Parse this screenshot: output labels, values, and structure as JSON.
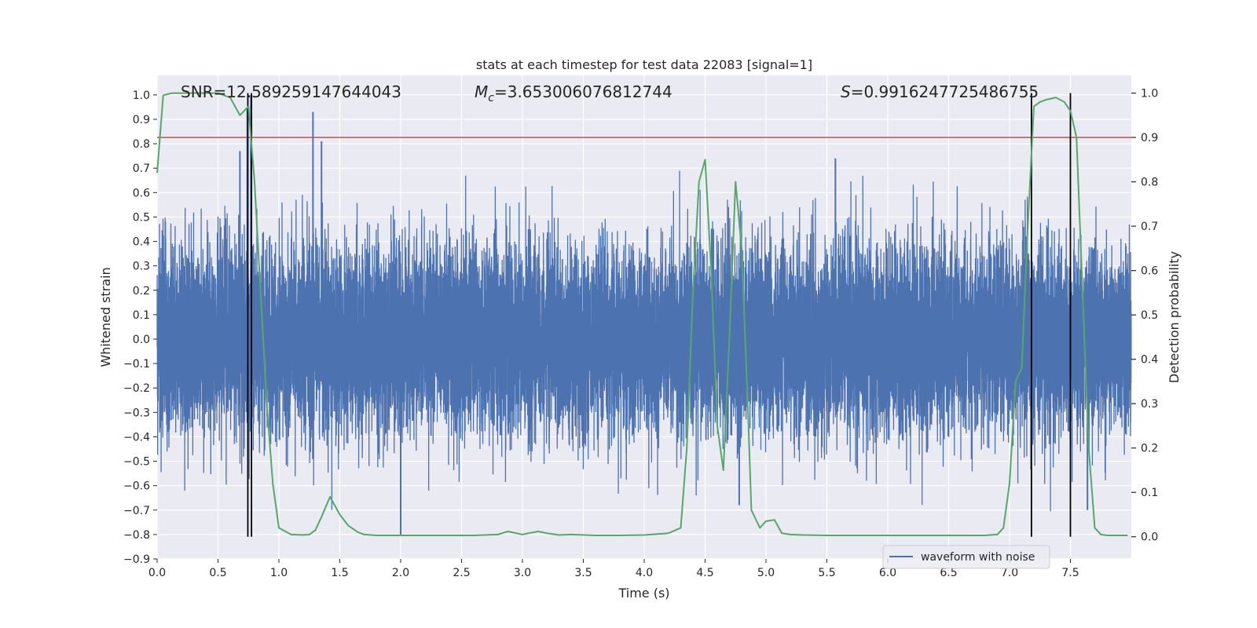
{
  "chart_data": {
    "type": "line",
    "title": "stats at each timestep for test data 22083 [signal=1]",
    "xlabel": "Time (s)",
    "ylabel_left": "Whitened strain",
    "ylabel_right": "Detection probability",
    "xlim": [
      0.0,
      8.0
    ],
    "ylim_left": [
      -0.9,
      1.08
    ],
    "ylim_right": [
      -0.05,
      1.04
    ],
    "x_ticks": [
      0.0,
      0.5,
      1.0,
      1.5,
      2.0,
      2.5,
      3.0,
      3.5,
      4.0,
      4.5,
      5.0,
      5.5,
      6.0,
      6.5,
      7.0,
      7.5
    ],
    "x_tick_labels": [
      "0.0",
      "0.5",
      "1.0",
      "1.5",
      "2.0",
      "2.5",
      "3.0",
      "3.5",
      "4.0",
      "4.5",
      "5.0",
      "5.5",
      "6.0",
      "6.5",
      "7.0",
      "7.5"
    ],
    "y_left_ticks": [
      1.0,
      0.9,
      0.8,
      0.7,
      0.6,
      0.5,
      0.4,
      0.3,
      0.2,
      0.1,
      0.0,
      -0.1,
      -0.2,
      -0.3,
      -0.4,
      -0.5,
      -0.6,
      -0.7,
      -0.8,
      -0.9
    ],
    "y_left_tick_labels": [
      "1.0",
      "0.9",
      "0.8",
      "0.7",
      "0.6",
      "0.5",
      "0.4",
      "0.3",
      "0.2",
      "0.1",
      "0.0",
      "−0.1",
      "−0.2",
      "−0.3",
      "−0.4",
      "−0.5",
      "−0.6",
      "−0.7",
      "−0.8",
      "−0.9"
    ],
    "y_right_ticks": [
      1.0,
      0.9,
      0.8,
      0.7,
      0.6,
      0.5,
      0.4,
      0.3,
      0.2,
      0.1,
      0.0
    ],
    "y_right_tick_labels": [
      "1.0",
      "0.9",
      "0.8",
      "0.7",
      "0.6",
      "0.5",
      "0.4",
      "0.3",
      "0.2",
      "0.1",
      "0.0"
    ],
    "annotations": {
      "snr": "SNR=12.589259147644043",
      "mc_symbol": "M",
      "mc_subscript": "c",
      "mc_value": "=3.653006076812744",
      "s_symbol": "S",
      "s_value": "=0.9916247725486755"
    },
    "waveform": {
      "name": "waveform with noise",
      "color": "#4c72b0",
      "duration_s": 8.0,
      "sample_rate_hz": 2048,
      "seed": 22083,
      "noise_std": 0.19,
      "envelope_upper_p": 0.72,
      "envelope_lower_p": -0.69,
      "notable_peaks": [
        {
          "x": 0.68,
          "y": 0.77
        },
        {
          "x": 0.74,
          "y": 0.95
        },
        {
          "x": 0.77,
          "y": 1.0
        },
        {
          "x": 1.28,
          "y": 0.93
        },
        {
          "x": 1.35,
          "y": 0.81
        },
        {
          "x": 2.0,
          "y": -0.8
        },
        {
          "x": 5.57,
          "y": 0.74
        },
        {
          "x": 4.78,
          "y": -0.68
        },
        {
          "x": 7.64,
          "y": -0.7
        }
      ]
    },
    "detection_probability": {
      "color": "#55a868",
      "x": [
        0.0,
        0.05,
        0.12,
        0.2,
        0.3,
        0.4,
        0.5,
        0.6,
        0.68,
        0.75,
        0.8,
        0.85,
        0.9,
        0.95,
        1.0,
        1.1,
        1.2,
        1.25,
        1.3,
        1.35,
        1.42,
        1.5,
        1.57,
        1.65,
        1.7,
        1.8,
        1.9,
        2.0,
        2.2,
        2.4,
        2.6,
        2.8,
        2.88,
        2.95,
        3.0,
        3.05,
        3.13,
        3.2,
        3.3,
        3.4,
        3.6,
        3.8,
        4.0,
        4.2,
        4.3,
        4.35,
        4.4,
        4.45,
        4.5,
        4.55,
        4.6,
        4.65,
        4.7,
        4.75,
        4.8,
        4.85,
        4.88,
        4.95,
        5.0,
        5.07,
        5.13,
        5.2,
        5.3,
        5.5,
        5.8,
        6.0,
        6.4,
        6.8,
        6.9,
        6.95,
        7.0,
        7.05,
        7.1,
        7.15,
        7.2,
        7.25,
        7.3,
        7.38,
        7.45,
        7.5,
        7.55,
        7.6,
        7.65,
        7.7,
        7.75,
        7.8,
        7.86,
        7.92,
        7.97
      ],
      "y": [
        0.82,
        0.995,
        1.0,
        1.0,
        1.0,
        1.0,
        1.0,
        0.99,
        0.95,
        0.97,
        0.8,
        0.55,
        0.3,
        0.12,
        0.02,
        0.005,
        0.004,
        0.005,
        0.015,
        0.045,
        0.09,
        0.05,
        0.025,
        0.01,
        0.005,
        0.003,
        0.003,
        0.003,
        0.003,
        0.003,
        0.003,
        0.005,
        0.012,
        0.008,
        0.005,
        0.008,
        0.012,
        0.008,
        0.004,
        0.005,
        0.003,
        0.003,
        0.004,
        0.008,
        0.02,
        0.2,
        0.55,
        0.8,
        0.85,
        0.6,
        0.25,
        0.15,
        0.45,
        0.8,
        0.65,
        0.3,
        0.06,
        0.02,
        0.035,
        0.038,
        0.008,
        0.005,
        0.004,
        0.003,
        0.003,
        0.003,
        0.003,
        0.003,
        0.005,
        0.02,
        0.12,
        0.35,
        0.38,
        0.7,
        0.97,
        0.98,
        0.985,
        0.99,
        0.98,
        0.96,
        0.9,
        0.55,
        0.2,
        0.02,
        0.005,
        0.003,
        0.003,
        0.003,
        0.003
      ]
    },
    "threshold_line": {
      "value": 0.9,
      "color": "#c44e52"
    },
    "vertical_lines": [
      {
        "x": 0.745,
        "y_top": 1.0,
        "y_bottom": 0.0
      },
      {
        "x": 0.775,
        "y_top": 1.0,
        "y_bottom": 0.0
      },
      {
        "x": 7.18,
        "y_top": 1.0,
        "y_bottom": 0.0
      },
      {
        "x": 7.5,
        "y_top": 1.0,
        "y_bottom": 0.0
      }
    ],
    "legend": {
      "entries": [
        "waveform with noise"
      ],
      "placement": "lower-right"
    },
    "grid": true,
    "axes_facecolor": "#eaeaf2"
  }
}
